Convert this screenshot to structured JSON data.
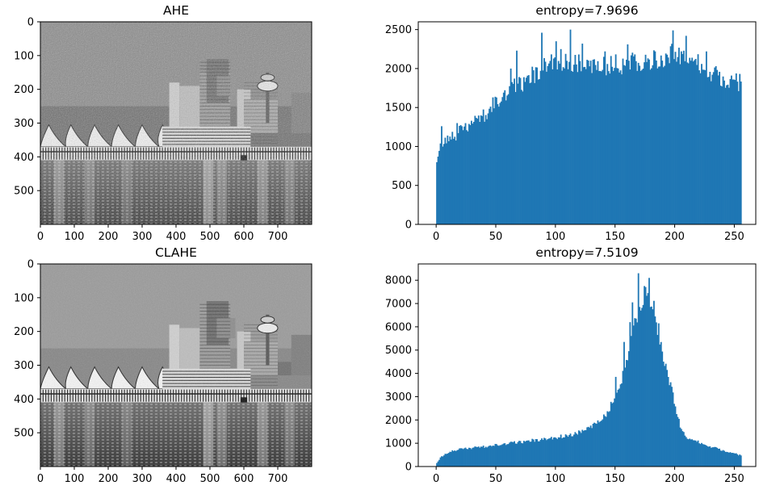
{
  "figure": {
    "background": "#ffffff"
  },
  "chart_data": [
    {
      "type": "image",
      "title": "AHE",
      "image_description_colors": {
        "sky": "#8a8a8a",
        "water": "#3a3a3a"
      },
      "xlim": [
        0,
        800
      ],
      "ylim": [
        600,
        0
      ],
      "xticks": [
        0,
        100,
        200,
        300,
        400,
        500,
        600,
        700
      ],
      "yticks": [
        0,
        100,
        200,
        300,
        400,
        500
      ],
      "grid": false
    },
    {
      "type": "bar",
      "title": "entropy=7.9696",
      "bar_color": "#1f77b4",
      "xlim": [
        -15,
        268
      ],
      "ylim": [
        0,
        2600
      ],
      "xticks": [
        0,
        50,
        100,
        150,
        200,
        250
      ],
      "yticks": [
        0,
        500,
        1000,
        1500,
        2000,
        2500
      ],
      "grid": false,
      "bins_x": [
        0,
        255
      ],
      "profile": [
        [
          0,
          800
        ],
        [
          2,
          1000
        ],
        [
          10,
          1080
        ],
        [
          20,
          1200
        ],
        [
          30,
          1290
        ],
        [
          40,
          1400
        ],
        [
          50,
          1550
        ],
        [
          60,
          1700
        ],
        [
          70,
          1800
        ],
        [
          80,
          1900
        ],
        [
          90,
          2050
        ],
        [
          100,
          2130
        ],
        [
          110,
          2100
        ],
        [
          120,
          2080
        ],
        [
          130,
          2000
        ],
        [
          140,
          2020
        ],
        [
          150,
          2050
        ],
        [
          160,
          2050
        ],
        [
          170,
          2080
        ],
        [
          180,
          2100
        ],
        [
          190,
          2150
        ],
        [
          200,
          2230
        ],
        [
          210,
          2180
        ],
        [
          220,
          2080
        ],
        [
          230,
          1950
        ],
        [
          240,
          1880
        ],
        [
          250,
          1820
        ],
        [
          255,
          1850
        ]
      ],
      "spikes": [
        [
          4,
          1260
        ],
        [
          9,
          1140
        ],
        [
          17,
          1300
        ],
        [
          29,
          1330
        ],
        [
          47,
          1630
        ],
        [
          62,
          2000
        ],
        [
          67,
          2230
        ],
        [
          88,
          2460
        ],
        [
          100,
          2350
        ],
        [
          112,
          2500
        ],
        [
          122,
          2320
        ],
        [
          141,
          2220
        ],
        [
          160,
          2310
        ],
        [
          183,
          2220
        ],
        [
          198,
          2490
        ],
        [
          209,
          2420
        ],
        [
          226,
          2220
        ],
        [
          247,
          1910
        ]
      ]
    },
    {
      "type": "image",
      "title": "CLAHE",
      "image_description_colors": {
        "sky": "#9a9a9a",
        "water": "#4a4a4a"
      },
      "xlim": [
        0,
        800
      ],
      "ylim": [
        600,
        0
      ],
      "xticks": [
        0,
        100,
        200,
        300,
        400,
        500,
        600,
        700
      ],
      "yticks": [
        0,
        100,
        200,
        300,
        400,
        500
      ],
      "grid": false
    },
    {
      "type": "bar",
      "title": "entropy=7.5109",
      "bar_color": "#1f77b4",
      "xlim": [
        -15,
        268
      ],
      "ylim": [
        0,
        8700
      ],
      "xticks": [
        0,
        50,
        100,
        150,
        200,
        250
      ],
      "yticks": [
        0,
        1000,
        2000,
        3000,
        4000,
        5000,
        6000,
        7000,
        8000
      ],
      "grid": false,
      "bins_x": [
        0,
        255
      ],
      "profile": [
        [
          0,
          150
        ],
        [
          3,
          380
        ],
        [
          8,
          550
        ],
        [
          15,
          700
        ],
        [
          25,
          780
        ],
        [
          40,
          850
        ],
        [
          55,
          950
        ],
        [
          70,
          1050
        ],
        [
          85,
          1150
        ],
        [
          100,
          1250
        ],
        [
          115,
          1400
        ],
        [
          130,
          1700
        ],
        [
          140,
          2100
        ],
        [
          145,
          2500
        ],
        [
          150,
          3100
        ],
        [
          155,
          3800
        ],
        [
          160,
          4600
        ],
        [
          165,
          5800
        ],
        [
          170,
          7000
        ],
        [
          175,
          7400
        ],
        [
          180,
          7200
        ],
        [
          185,
          6000
        ],
        [
          190,
          4800
        ],
        [
          195,
          3700
        ],
        [
          200,
          2600
        ],
        [
          205,
          1600
        ],
        [
          210,
          1250
        ],
        [
          220,
          1050
        ],
        [
          230,
          850
        ],
        [
          240,
          700
        ],
        [
          250,
          550
        ],
        [
          255,
          480
        ]
      ],
      "spikes": [
        [
          169,
          8300
        ],
        [
          174,
          7750
        ],
        [
          178,
          8100
        ],
        [
          164,
          7050
        ],
        [
          157,
          5350
        ],
        [
          150,
          3850
        ],
        [
          162,
          6200
        ],
        [
          186,
          6150
        ]
      ]
    }
  ]
}
